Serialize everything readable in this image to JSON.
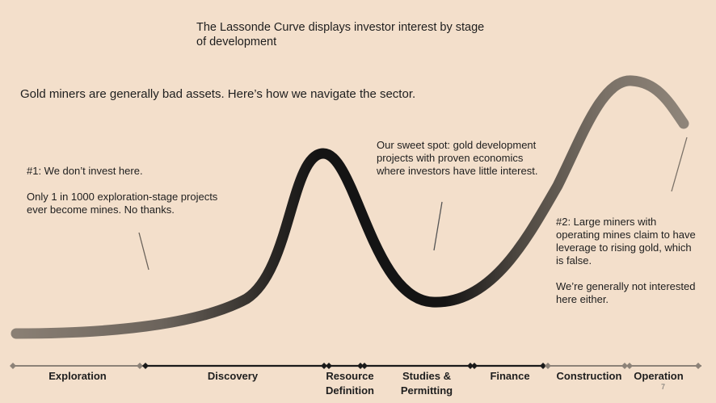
{
  "title": "The Lassonde Curve displays investor interest by stage\nof development",
  "subtitle": "Gold miners are generally bad assets. Here’s how we navigate the sector.",
  "annotations": {
    "no_invest": "#1: We don’t invest here.\n\nOnly 1 in 1000 exploration-stage projects ever become mines. No thanks.",
    "sweet_spot": "Our sweet spot: gold development projects with proven economics where investors have little interest.",
    "large_miners": "#2: Large miners with operating mines claim to have leverage to rising gold, which is false.\n\nWe’re generally not interested here either."
  },
  "stages": [
    {
      "label": "Exploration"
    },
    {
      "label": "Discovery"
    },
    {
      "label": "Resource\nDefinition"
    },
    {
      "label": "Studies  &\nPermitting"
    },
    {
      "label": "Finance"
    },
    {
      "label": "Construction"
    },
    {
      "label": "Operation"
    }
  ],
  "page_number": "7",
  "colors": {
    "background": "#f3dfcb",
    "curve_dark": "#141414",
    "curve_light": "#8a7f74",
    "timeline_dark": "#1a1a1a",
    "timeline_light": "#8c8278"
  }
}
